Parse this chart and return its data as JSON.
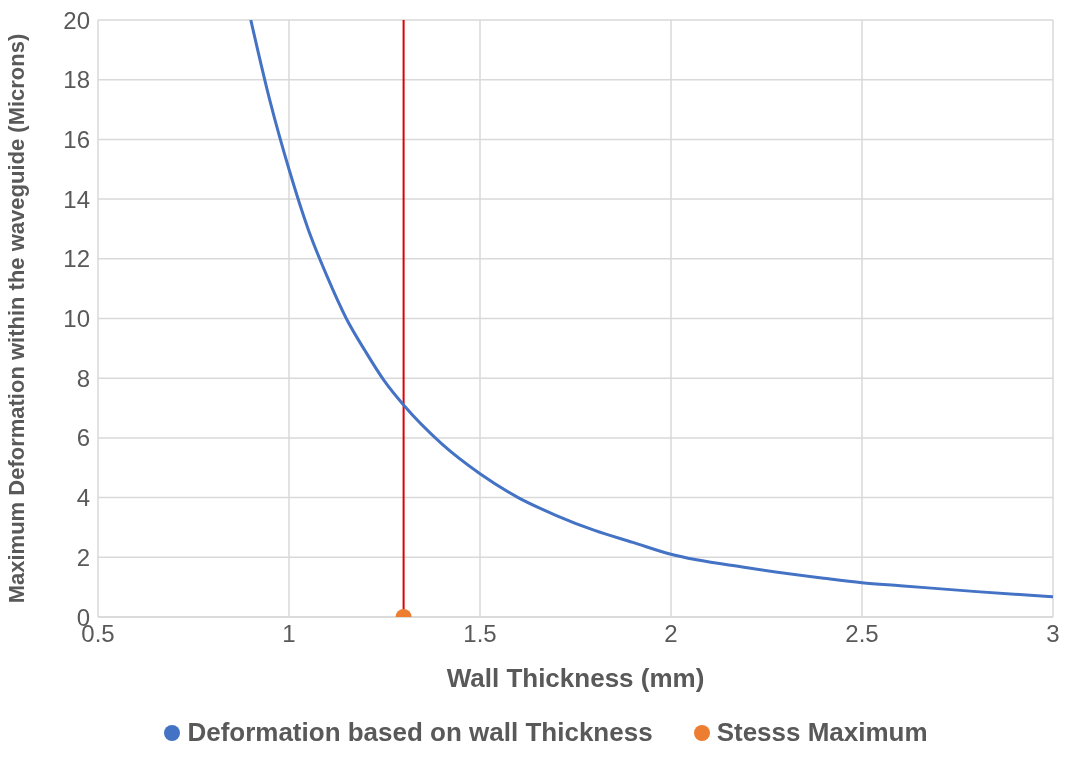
{
  "chart_data": {
    "type": "line",
    "xlabel": "Wall Thickness (mm)",
    "ylabel": "Maximum Deformation within the waveguide (Microns)",
    "xlim": [
      0.5,
      3
    ],
    "xticks": [
      0.5,
      1,
      1.5,
      2,
      2.5,
      3
    ],
    "ylim": [
      0,
      20
    ],
    "yticks": [
      0,
      2,
      4,
      6,
      8,
      10,
      12,
      14,
      16,
      18,
      20
    ],
    "grid": true,
    "legend": "bottom",
    "series": [
      {
        "name": "Deformation based on wall Thickness",
        "marker": "none",
        "color": "#4472c4",
        "x": [
          0.9,
          0.95,
          1,
          1.05,
          1.1,
          1.15,
          1.2,
          1.25,
          1.3,
          1.4,
          1.5,
          1.6,
          1.7,
          1.8,
          1.9,
          2,
          2.2,
          2.4,
          2.5,
          2.6,
          2.8,
          3
        ],
        "values": [
          20,
          17.3,
          15,
          13,
          11.4,
          10,
          8.9,
          7.9,
          7.1,
          5.8,
          4.8,
          4,
          3.4,
          2.9,
          2.5,
          2.1,
          1.65,
          1.3,
          1.15,
          1.05,
          0.85,
          0.68
        ]
      },
      {
        "name": "Stesss Maximum",
        "type": "scatter",
        "marker": "circle",
        "color": "#ed7d31",
        "x": [
          1.3
        ],
        "values": [
          0
        ]
      }
    ],
    "ref_lines": [
      {
        "axis": "x",
        "value": 1.3,
        "color": "#e00000"
      }
    ]
  }
}
